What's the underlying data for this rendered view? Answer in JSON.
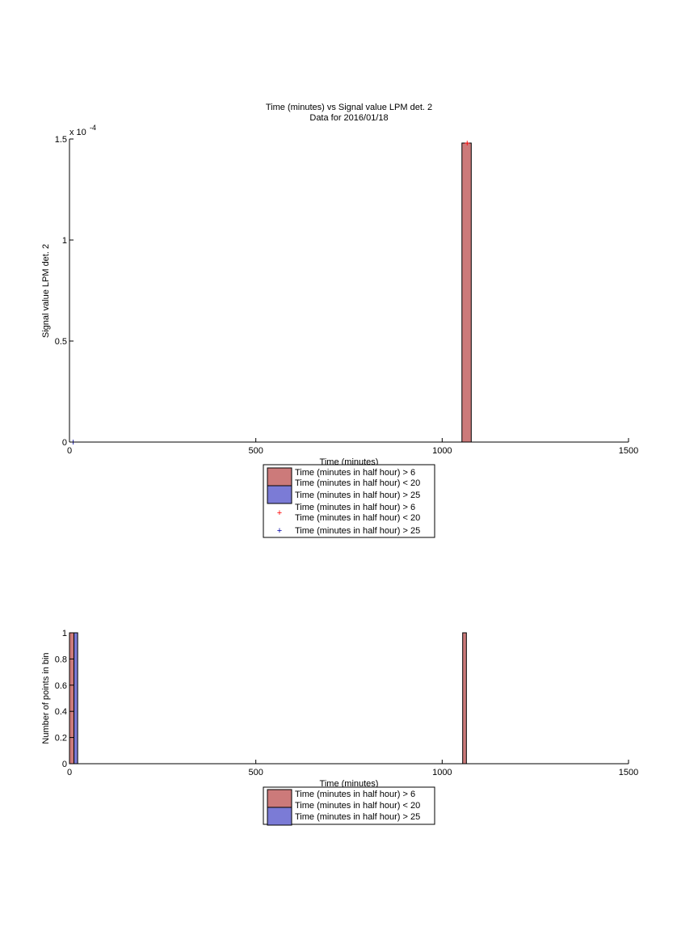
{
  "chart_data": [
    {
      "type": "bar",
      "title": "Time (minutes) vs Signal value LPM det. 2",
      "subtitle": "Data for 2016/01/18",
      "xlabel": "Time (minutes)",
      "ylabel": "Signal value LPM det. 2",
      "y_multiplier": "x 10",
      "y_exponent": "-4",
      "xlim": [
        0,
        1500
      ],
      "ylim": [
        0,
        0.00015
      ],
      "xticks": [
        0,
        500,
        1000,
        1500
      ],
      "yticks": [
        0,
        5e-05,
        0.0001,
        0.00015
      ],
      "ytick_labels": [
        "0",
        "0.5",
        "1",
        "1.5"
      ],
      "grid": false,
      "legend_placement": "below",
      "colors": {
        "series1": "#cc7a7a",
        "series2": "#7b7bd6",
        "marker1": "#ff0000",
        "marker2": "#0000aa"
      },
      "legend": [
        {
          "label_line1": "Time (minutes in half hour) > 6",
          "label_line2": "Time (minutes in half hour) < 20",
          "kind": "patch",
          "series": 0
        },
        {
          "label_line1": "Time (minutes in half hour) > 25",
          "label_line2": "",
          "kind": "patch",
          "series": 1
        },
        {
          "label_line1": "Time (minutes in half hour) > 6",
          "label_line2": "Time (minutes in half hour) < 20",
          "kind": "marker",
          "series": 0
        },
        {
          "label_line1": "Time (minutes in half hour) > 25",
          "label_line2": "",
          "kind": "marker",
          "series": 1
        }
      ],
      "series": [
        {
          "bars": [
            {
              "x0": 1053,
              "x1": 1078,
              "value": 0.000148
            }
          ],
          "points": [
            {
              "x": 1067,
              "y": 0.000148
            }
          ]
        },
        {
          "bars": [],
          "points": [
            {
              "x": 10,
              "y": 0
            }
          ]
        }
      ]
    },
    {
      "type": "bar",
      "xlabel": "Time (minutes)",
      "ylabel": "Number of points in bin",
      "xlim": [
        0,
        1500
      ],
      "ylim": [
        0,
        1
      ],
      "xticks": [
        0,
        500,
        1000,
        1500
      ],
      "yticks": [
        0,
        0.2,
        0.4,
        0.6,
        0.8,
        1
      ],
      "ytick_labels": [
        "0",
        "0.2",
        "0.4",
        "0.6",
        "0.8",
        "1"
      ],
      "grid": false,
      "legend_placement": "below",
      "legend": [
        {
          "label_line1": "Time (minutes in half hour) > 6",
          "label_line2": "Time (minutes in half hour) < 20",
          "kind": "patch",
          "series": 0
        },
        {
          "label_line1": "Time (minutes in half hour) > 25",
          "label_line2": "",
          "kind": "patch",
          "series": 1
        }
      ],
      "series": [
        {
          "bars": [
            {
              "x0": 0,
              "x1": 12,
              "value": 1
            },
            {
              "x0": 1055,
              "x1": 1065,
              "value": 1
            }
          ]
        },
        {
          "bars": [
            {
              "x0": 12,
              "x1": 22,
              "value": 1
            }
          ]
        }
      ]
    }
  ]
}
